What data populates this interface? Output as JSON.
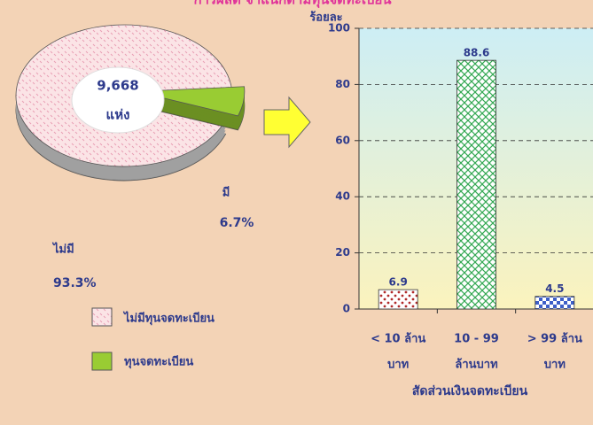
{
  "chart_data": [
    {
      "type": "pie",
      "title": "การผลิต จำแนกตามทุนจดทะเบียน",
      "center_label": [
        "9,668",
        "แห่ง"
      ],
      "categories": [
        "ไม่มีทุนจดทะเบียน",
        "ทุนจดทะเบียน"
      ],
      "slice_labels": [
        "ไม่มี",
        "มี"
      ],
      "values": [
        93.3,
        6.7
      ],
      "value_labels": [
        "93.3%",
        "6.7%"
      ],
      "colors": [
        "#fbe4e6",
        "#99cc33"
      ]
    },
    {
      "type": "bar",
      "y_label": "ร้อยละ",
      "x_label": "สัดส่วนเงินจดทะเบียน",
      "categories": [
        [
          "< 10 ล้าน",
          "บาท"
        ],
        [
          "10 - 99",
          "ล้านบาท"
        ],
        [
          "> 99 ล้าน",
          "บาท"
        ]
      ],
      "values": [
        6.9,
        88.6,
        4.5
      ],
      "colors": [
        "#b02a2a",
        "#33a852",
        "#3d5fc8"
      ],
      "ylim": [
        0,
        100
      ],
      "yticks": [
        0,
        20,
        40,
        60,
        80,
        100
      ],
      "grid": true
    }
  ]
}
